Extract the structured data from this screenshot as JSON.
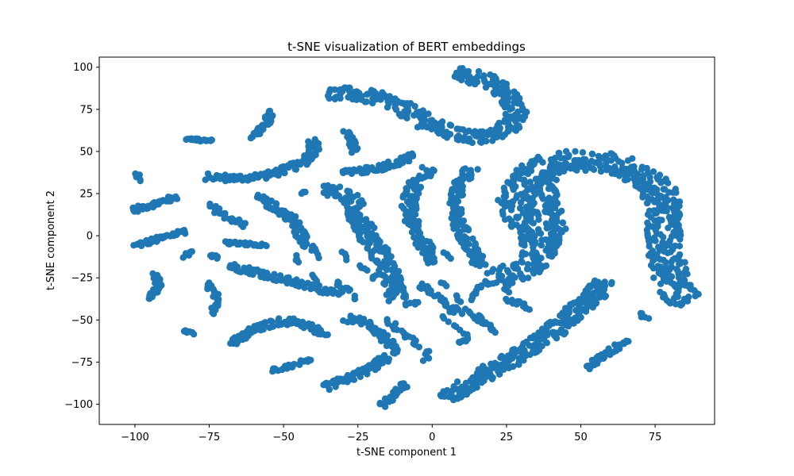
{
  "chart_data": {
    "type": "scatter",
    "title": "t-SNE visualization of BERT embeddings",
    "xlabel": "t-SNE component 1",
    "ylabel": "t-SNE component 2",
    "xlim": [
      -112,
      95
    ],
    "ylim": [
      -112,
      106
    ],
    "xticks": [
      -100,
      -75,
      -50,
      -25,
      0,
      25,
      50,
      75
    ],
    "yticks": [
      -100,
      -75,
      -50,
      -25,
      0,
      25,
      50,
      75,
      100
    ],
    "grid": false,
    "legend": "none",
    "point_color": "#1f77b4",
    "clusters": [
      {
        "path": [
          [
            -100,
            -6
          ],
          [
            -92,
            -2
          ],
          [
            -83,
            3
          ]
        ],
        "width": 1.5,
        "n": 40
      },
      {
        "path": [
          [
            -101,
            15
          ],
          [
            -93,
            19
          ],
          [
            -86,
            23
          ]
        ],
        "width": 1.5,
        "n": 40
      },
      {
        "path": [
          [
            -99,
            33
          ],
          [
            -99,
            37
          ]
        ],
        "width": 1,
        "n": 6
      },
      {
        "path": [
          [
            -83,
            58
          ],
          [
            -79,
            57
          ],
          [
            -74,
            56
          ]
        ],
        "width": 1,
        "n": 20
      },
      {
        "path": [
          [
            -76,
            35
          ],
          [
            -65,
            34
          ],
          [
            -55,
            36
          ],
          [
            -48,
            40
          ],
          [
            -43,
            44
          ],
          [
            -40,
            51
          ],
          [
            -40,
            57
          ]
        ],
        "width": 2,
        "n": 100
      },
      {
        "path": [
          [
            -61,
            58
          ],
          [
            -56,
            65
          ],
          [
            -54,
            74
          ]
        ],
        "width": 1.5,
        "n": 30
      },
      {
        "path": [
          [
            -75,
            18
          ],
          [
            -70,
            12
          ],
          [
            -65,
            8
          ],
          [
            -63,
            6
          ]
        ],
        "width": 1.5,
        "n": 30
      },
      {
        "path": [
          [
            -70,
            -4
          ],
          [
            -62,
            -5
          ],
          [
            -56,
            -6
          ]
        ],
        "width": 1,
        "n": 25
      },
      {
        "path": [
          [
            -84,
            -12
          ],
          [
            -80,
            -10
          ]
        ],
        "width": 1,
        "n": 8
      },
      {
        "path": [
          [
            -75,
            -12
          ],
          [
            -72,
            -13
          ]
        ],
        "width": 1,
        "n": 6
      },
      {
        "path": [
          [
            -95,
            -38
          ],
          [
            -92,
            -30
          ],
          [
            -93,
            -22
          ]
        ],
        "width": 1.2,
        "n": 25
      },
      {
        "path": [
          [
            -76,
            -28
          ],
          [
            -73,
            -35
          ],
          [
            -73,
            -46
          ]
        ],
        "width": 1.2,
        "n": 25
      },
      {
        "path": [
          [
            -83,
            -56
          ],
          [
            -80,
            -58
          ]
        ],
        "width": 1,
        "n": 8
      },
      {
        "path": [
          [
            -68,
            -18
          ],
          [
            -58,
            -22
          ],
          [
            -50,
            -26
          ],
          [
            -42,
            -30
          ],
          [
            -34,
            -33
          ],
          [
            -28,
            -33
          ]
        ],
        "width": 2,
        "n": 90
      },
      {
        "path": [
          [
            -59,
            23
          ],
          [
            -52,
            16
          ],
          [
            -47,
            10
          ],
          [
            -45,
            3
          ],
          [
            -43,
            -3
          ],
          [
            -40,
            -8
          ]
        ],
        "width": 2,
        "n": 80
      },
      {
        "path": [
          [
            -67,
            -64
          ],
          [
            -60,
            -56
          ],
          [
            -52,
            -51
          ],
          [
            -45,
            -51
          ],
          [
            -40,
            -55
          ],
          [
            -36,
            -60
          ]
        ],
        "width": 2,
        "n": 80
      },
      {
        "path": [
          [
            -54,
            -80
          ],
          [
            -47,
            -77
          ],
          [
            -41,
            -73
          ]
        ],
        "width": 1,
        "n": 25
      },
      {
        "path": [
          [
            -35,
            84
          ],
          [
            -25,
            84
          ],
          [
            -15,
            80
          ],
          [
            -8,
            74
          ],
          [
            -1,
            66
          ],
          [
            8,
            60
          ],
          [
            18,
            58
          ],
          [
            24,
            62
          ],
          [
            28,
            69
          ],
          [
            28,
            78
          ],
          [
            24,
            86
          ],
          [
            18,
            92
          ],
          [
            8,
            97
          ]
        ],
        "width": 4,
        "n": 280
      },
      {
        "path": [
          [
            -29,
            62
          ],
          [
            -27,
            56
          ],
          [
            -26,
            50
          ]
        ],
        "width": 1.2,
        "n": 20
      },
      {
        "path": [
          [
            -30,
            38
          ],
          [
            -20,
            39
          ],
          [
            -11,
            44
          ],
          [
            -6,
            48
          ]
        ],
        "width": 1.8,
        "n": 50
      },
      {
        "path": [
          [
            -37,
            28
          ],
          [
            -31,
            26
          ],
          [
            -27,
            21
          ],
          [
            -25,
            12
          ],
          [
            -22,
            1
          ],
          [
            -18,
            -9
          ],
          [
            -15,
            -20
          ],
          [
            -13,
            -30
          ],
          [
            -12,
            -38
          ]
        ],
        "width": 3.5,
        "n": 180
      },
      {
        "path": [
          [
            -29,
            -49
          ],
          [
            -23,
            -51
          ],
          [
            -19,
            -55
          ],
          [
            -15,
            -63
          ],
          [
            -13,
            -70
          ]
        ],
        "width": 2,
        "n": 60
      },
      {
        "path": [
          [
            -36,
            -90
          ],
          [
            -27,
            -84
          ],
          [
            -20,
            -78
          ],
          [
            -15,
            -72
          ]
        ],
        "width": 2,
        "n": 60
      },
      {
        "path": [
          [
            -17,
            -101
          ],
          [
            -13,
            -95
          ],
          [
            -9,
            -88
          ]
        ],
        "width": 1.5,
        "n": 30
      },
      {
        "path": [
          [
            -1,
            40
          ],
          [
            -6,
            30
          ],
          [
            -8,
            20
          ],
          [
            -7,
            8
          ],
          [
            -4,
            -2
          ],
          [
            -1,
            -10
          ],
          [
            1,
            -16
          ]
        ],
        "width": 2.5,
        "n": 120
      },
      {
        "path": [
          [
            13,
            40
          ],
          [
            9,
            30
          ],
          [
            7,
            20
          ],
          [
            8,
            10
          ],
          [
            11,
            0
          ],
          [
            14,
            -10
          ],
          [
            16,
            -18
          ]
        ],
        "width": 2.5,
        "n": 120
      },
      {
        "path": [
          [
            5,
            -97
          ],
          [
            12,
            -88
          ],
          [
            20,
            -80
          ],
          [
            30,
            -70
          ],
          [
            40,
            -58
          ],
          [
            48,
            -45
          ],
          [
            55,
            -35
          ],
          [
            58,
            -27
          ]
        ],
        "width": 4,
        "n": 260
      },
      {
        "path": [
          [
            52,
            -78
          ],
          [
            57,
            -72
          ],
          [
            62,
            -66
          ],
          [
            65,
            -62
          ]
        ],
        "width": 1.5,
        "n": 40
      },
      {
        "path": [
          [
            70,
            -46
          ],
          [
            72,
            -49
          ]
        ],
        "width": 1,
        "n": 6
      },
      {
        "path": [
          [
            22,
            -26
          ],
          [
            30,
            -20
          ],
          [
            36,
            -12
          ],
          [
            36,
            0
          ],
          [
            30,
            10
          ],
          [
            28,
            22
          ],
          [
            32,
            35
          ],
          [
            40,
            43
          ],
          [
            50,
            45
          ],
          [
            62,
            43
          ],
          [
            70,
            36
          ],
          [
            76,
            28
          ],
          [
            78,
            15
          ],
          [
            78,
            0
          ],
          [
            79,
            -15
          ],
          [
            81,
            -30
          ],
          [
            86,
            -40
          ]
        ],
        "width": 6,
        "n": 600
      },
      {
        "path": [
          [
            42,
            -5
          ],
          [
            42,
            5
          ],
          [
            40,
            20
          ],
          [
            38,
            30
          ],
          [
            40,
            38
          ]
        ],
        "width": 3,
        "n": 80
      },
      {
        "path": [
          [
            -15,
            -50
          ],
          [
            -10,
            -58
          ],
          [
            -4,
            -65
          ]
        ],
        "width": 1.2,
        "n": 20
      },
      {
        "path": [
          [
            -1,
            -68
          ],
          [
            -2,
            -74
          ]
        ],
        "width": 1,
        "n": 6
      },
      {
        "path": [
          [
            7,
            -46
          ],
          [
            5,
            -40
          ],
          [
            2,
            -36
          ],
          [
            -2,
            -33
          ],
          [
            -4,
            -29
          ]
        ],
        "width": 1.2,
        "n": 25
      },
      {
        "path": [
          [
            13,
            -38
          ],
          [
            16,
            -30
          ],
          [
            22,
            -28
          ]
        ],
        "width": 1,
        "n": 15
      },
      {
        "path": [
          [
            14,
            -48
          ],
          [
            18,
            -52
          ],
          [
            21,
            -57
          ]
        ],
        "width": 1,
        "n": 15
      },
      {
        "path": [
          [
            9,
            -64
          ],
          [
            12,
            -62
          ]
        ],
        "width": 1,
        "n": 6
      },
      {
        "path": [
          [
            25,
            -38
          ],
          [
            29,
            -40
          ],
          [
            33,
            -43
          ]
        ],
        "width": 1,
        "n": 15
      },
      {
        "path": [
          [
            -43,
            26
          ],
          [
            -44,
            25
          ]
        ],
        "width": 0.5,
        "n": 3
      },
      {
        "path": [
          [
            -39,
            -8
          ],
          [
            -38,
            -13
          ]
        ],
        "width": 0.5,
        "n": 4
      },
      {
        "path": [
          [
            -46,
            -12
          ],
          [
            -45,
            -16
          ]
        ],
        "width": 0.5,
        "n": 4
      },
      {
        "path": [
          [
            -30,
            -10
          ],
          [
            -29,
            -14
          ]
        ],
        "width": 0.5,
        "n": 4
      },
      {
        "path": [
          [
            -40,
            -23
          ],
          [
            -39,
            -27
          ]
        ],
        "width": 0.5,
        "n": 4
      },
      {
        "path": [
          [
            -32,
            -27
          ],
          [
            -31,
            -31
          ]
        ],
        "width": 0.5,
        "n": 4
      },
      {
        "path": [
          [
            -24,
            -18
          ],
          [
            -22,
            -21
          ]
        ],
        "width": 0.5,
        "n": 4
      },
      {
        "path": [
          [
            -19,
            -23
          ],
          [
            -20,
            -25
          ]
        ],
        "width": 0.5,
        "n": 3
      },
      {
        "path": [
          [
            -26,
            -36
          ],
          [
            -26,
            -38
          ]
        ],
        "width": 0.5,
        "n": 3
      },
      {
        "path": [
          [
            -8,
            -40
          ],
          [
            -9,
            -41
          ]
        ],
        "width": 0.5,
        "n": 3
      },
      {
        "path": [
          [
            4,
            -10
          ],
          [
            6,
            -14
          ]
        ],
        "width": 0.5,
        "n": 4
      },
      {
        "path": [
          [
            -2,
            -30
          ],
          [
            -1,
            -34
          ]
        ],
        "width": 0.5,
        "n": 4
      },
      {
        "path": [
          [
            3,
            -28
          ],
          [
            5,
            -30
          ]
        ],
        "width": 0.5,
        "n": 3
      },
      {
        "path": [
          [
            8,
            -35
          ],
          [
            9,
            -39
          ]
        ],
        "width": 0.5,
        "n": 4
      },
      {
        "path": [
          [
            4,
            -48
          ],
          [
            5,
            -51
          ]
        ],
        "width": 0.5,
        "n": 3
      },
      {
        "path": [
          [
            8,
            -43
          ],
          [
            10,
            -46
          ]
        ],
        "width": 0.5,
        "n": 3
      },
      {
        "path": [
          [
            11,
            -44
          ],
          [
            13,
            -46
          ]
        ],
        "width": 0.5,
        "n": 3
      },
      {
        "path": [
          [
            16,
            -47
          ],
          [
            17,
            -49
          ]
        ],
        "width": 0.5,
        "n": 3
      },
      {
        "path": [
          [
            7,
            -53
          ],
          [
            9,
            -56
          ]
        ],
        "width": 0.5,
        "n": 3
      },
      {
        "path": [
          [
            11,
            -58
          ],
          [
            12,
            -60
          ]
        ],
        "width": 0.5,
        "n": 3
      },
      {
        "path": [
          [
            18,
            -27
          ],
          [
            19,
            -29
          ]
        ],
        "width": 0.5,
        "n": 3
      },
      {
        "path": [
          [
            24,
            -32
          ],
          [
            26,
            -34
          ]
        ],
        "width": 0.5,
        "n": 3
      },
      {
        "path": [
          [
            -5,
            -39
          ],
          [
            -6,
            -41
          ]
        ],
        "width": 0.5,
        "n": 3
      }
    ]
  }
}
